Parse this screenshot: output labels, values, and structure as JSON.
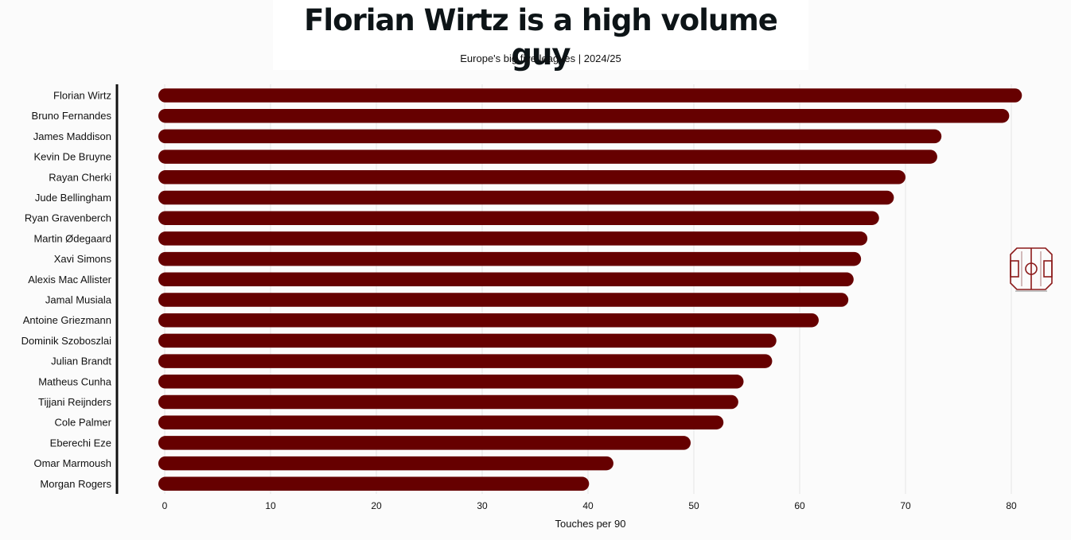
{
  "title": "Florian Wirtz is a high volume guy",
  "subtitle": "Europe's big five leagues | 2024/25",
  "colors": {
    "bar": "#660000",
    "axis": "#111111",
    "grid": "#e6e6e6",
    "logo": "#8b1a1a"
  },
  "logo_icon": "football-pitch-icon",
  "chart_data": {
    "type": "bar",
    "orientation": "horizontal",
    "categories": [
      "Florian Wirtz",
      "Bruno Fernandes",
      "James Maddison",
      "Kevin De Bruyne",
      "Rayan Cherki",
      "Jude Bellingham",
      "Ryan Gravenberch",
      "Martin Ødegaard",
      "Xavi Simons",
      "Alexis Mac Allister",
      "Jamal Musiala",
      "Antoine Griezmann",
      "Dominik Szoboszlai",
      "Julian Brandt",
      "Matheus Cunha",
      "Tijjani Reijnders",
      "Cole Palmer",
      "Eberechi Eze",
      "Omar Marmoush",
      "Morgan Rogers"
    ],
    "values": [
      81.0,
      79.8,
      73.4,
      73.0,
      70.0,
      68.9,
      67.5,
      66.4,
      65.8,
      65.1,
      64.6,
      61.8,
      57.8,
      57.4,
      54.7,
      54.2,
      52.8,
      49.7,
      42.4,
      40.1
    ],
    "xlabel": "Touches per 90",
    "ylabel": "",
    "xlim": [
      0,
      82.5
    ],
    "xticks": [
      0,
      10,
      20,
      30,
      40,
      50,
      60,
      70,
      80
    ],
    "grid": "vertical"
  }
}
